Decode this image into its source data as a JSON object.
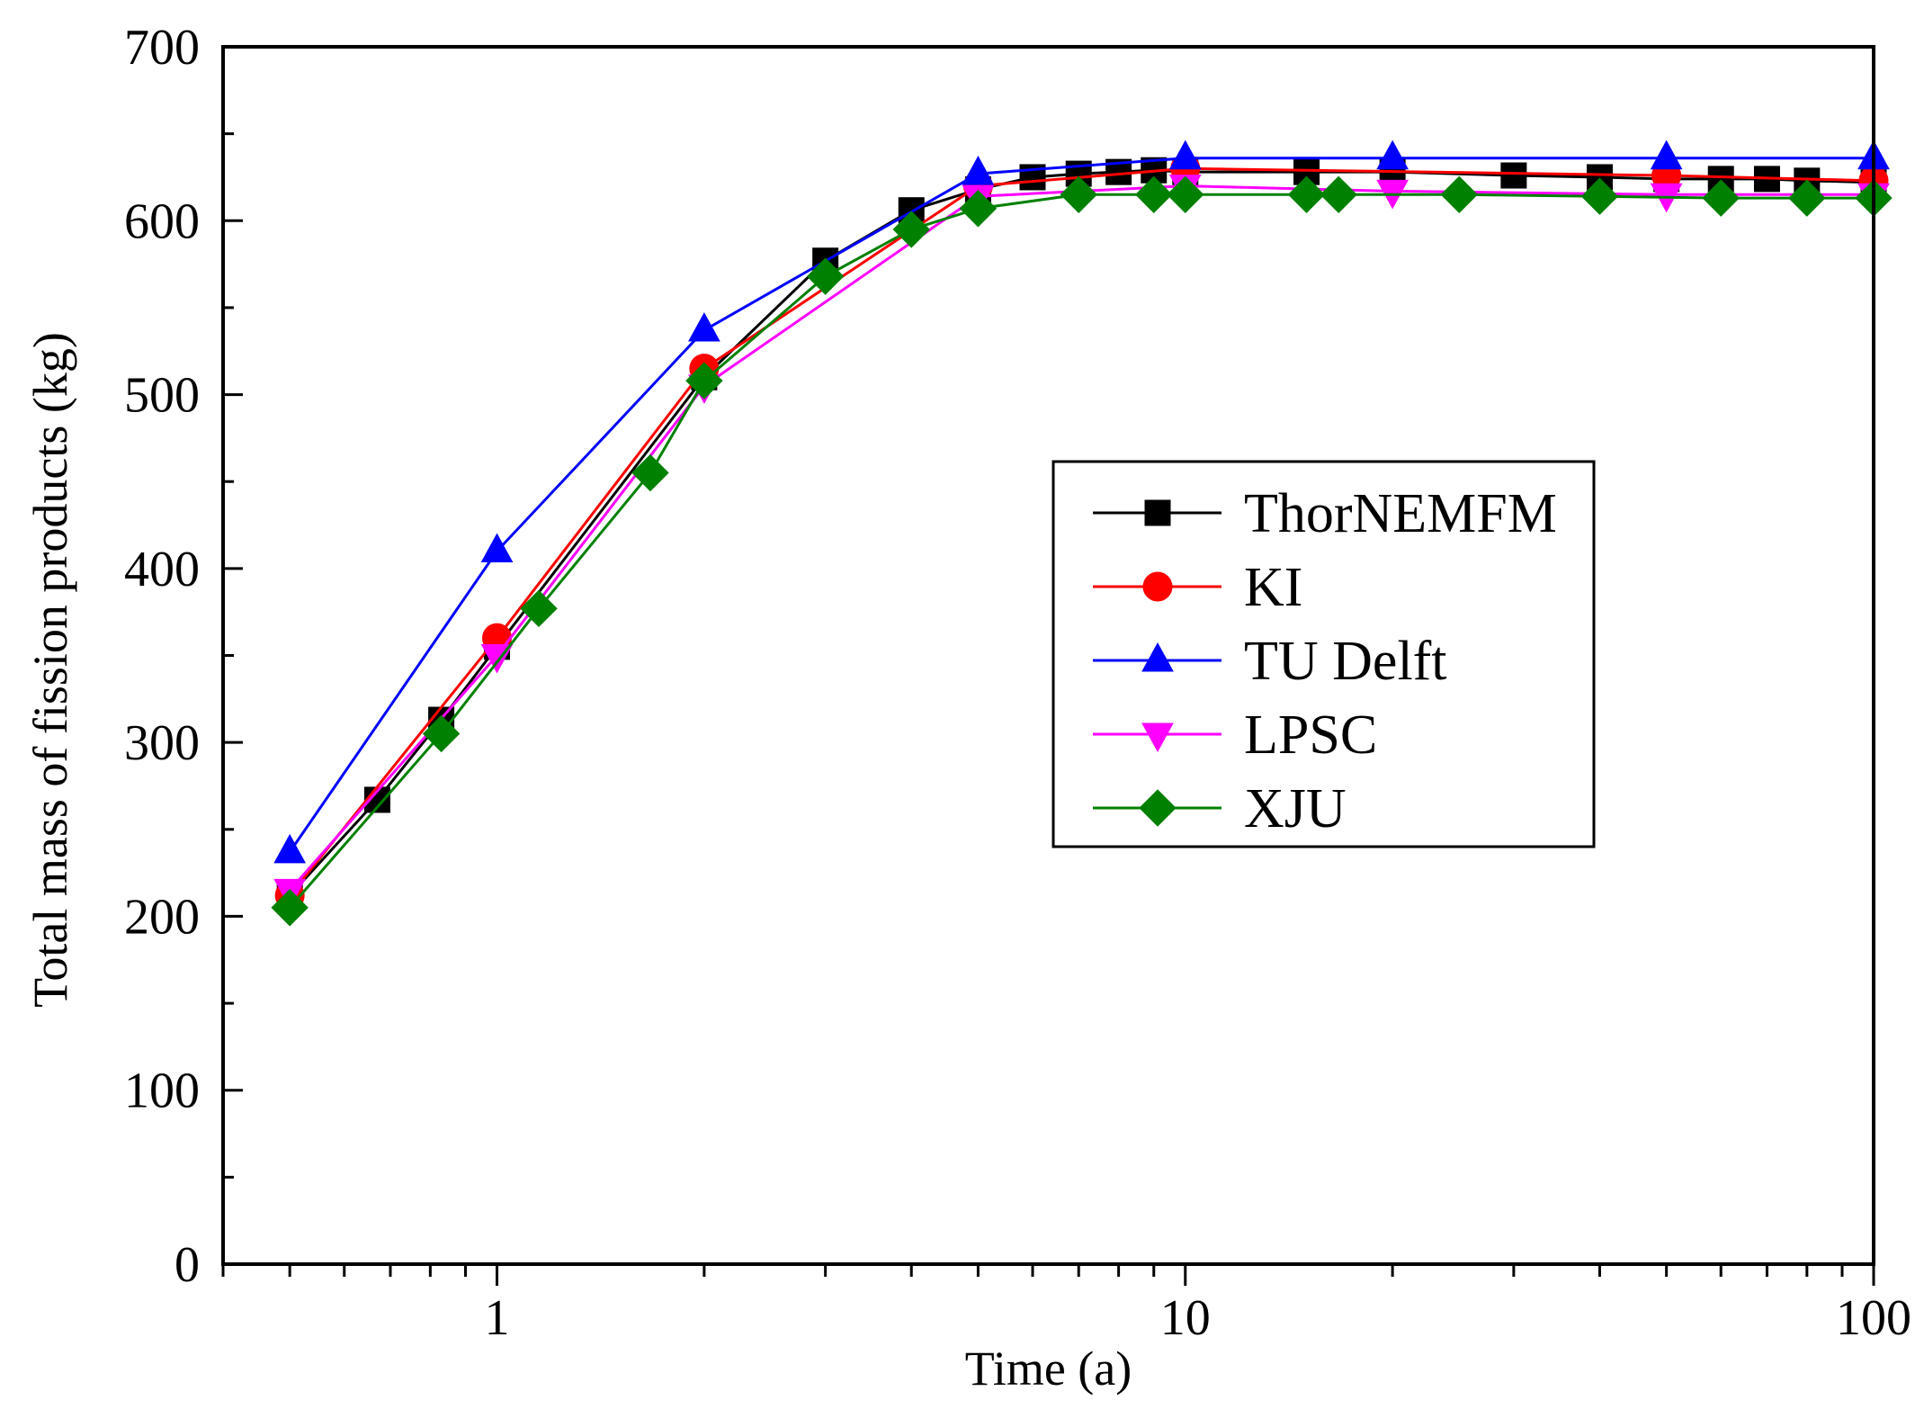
{
  "chart_data": {
    "type": "line",
    "title": "",
    "xlabel": "Time (a)",
    "ylabel": "Total mass of fission products (kg)",
    "xscale": "log",
    "xlim": [
      0.4,
      100
    ],
    "ylim": [
      0,
      700
    ],
    "x_tick_labels": [
      {
        "value": 1,
        "label": "1"
      },
      {
        "value": 10,
        "label": "10"
      },
      {
        "value": 100,
        "label": "100"
      }
    ],
    "y_tick_labels": [
      {
        "value": 0,
        "label": "0"
      },
      {
        "value": 100,
        "label": "100"
      },
      {
        "value": 200,
        "label": "200"
      },
      {
        "value": 300,
        "label": "300"
      },
      {
        "value": 400,
        "label": "400"
      },
      {
        "value": 500,
        "label": "500"
      },
      {
        "value": 600,
        "label": "600"
      },
      {
        "value": 700,
        "label": "700"
      }
    ],
    "legend_position": "center-right",
    "series": [
      {
        "name": "ThorNEMFM",
        "color": "#000000",
        "marker": "square",
        "x": [
          0.5,
          0.67,
          0.83,
          1.0,
          2.0,
          3.0,
          4.0,
          5.0,
          6.0,
          7.0,
          8.0,
          9.0,
          10.0,
          15.0,
          20.0,
          30.0,
          40.0,
          50.0,
          60.0,
          70.0,
          80.0,
          100.0
        ],
        "y": [
          212,
          267,
          313,
          355,
          510,
          577,
          606,
          618,
          625,
          627,
          628,
          629,
          628,
          628,
          628,
          626,
          625,
          624,
          624,
          624,
          623,
          622
        ]
      },
      {
        "name": "KI",
        "color": "#ff0000",
        "marker": "circle",
        "x": [
          0.5,
          1.0,
          2.0,
          5.0,
          10.0,
          50.0,
          100.0
        ],
        "y": [
          212,
          360,
          515,
          620,
          630,
          626,
          623
        ]
      },
      {
        "name": "TU Delft",
        "color": "#0000ff",
        "marker": "triangle-up",
        "x": [
          0.5,
          1.0,
          2.0,
          5.0,
          10.0,
          20.0,
          50.0,
          100.0
        ],
        "y": [
          237,
          410,
          537,
          627,
          636,
          636,
          636,
          636
        ]
      },
      {
        "name": "LPSC",
        "color": "#ff00ff",
        "marker": "triangle-down",
        "x": [
          0.5,
          1.0,
          2.0,
          5.0,
          10.0,
          20.0,
          50.0,
          100.0
        ],
        "y": [
          215,
          350,
          505,
          614,
          620,
          617,
          615,
          615
        ]
      },
      {
        "name": "XJU",
        "color": "#008000",
        "marker": "diamond",
        "x": [
          0.5,
          0.83,
          1.15,
          1.67,
          2.0,
          3.0,
          4.0,
          5.0,
          7.0,
          9.0,
          10.0,
          15.0,
          16.7,
          25.0,
          40.0,
          60.0,
          80.0,
          100.0
        ],
        "y": [
          205,
          305,
          377,
          455,
          508,
          568,
          595,
          607,
          615,
          615,
          615,
          615,
          615,
          615,
          614,
          613,
          613,
          613
        ]
      }
    ]
  }
}
